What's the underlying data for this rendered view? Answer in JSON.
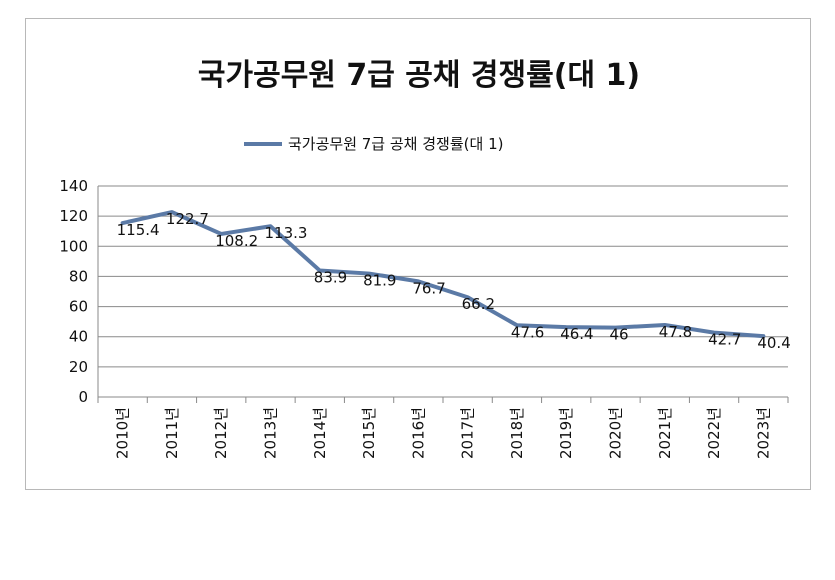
{
  "chart_data": {
    "type": "line",
    "title": "국가공무원 7급 공채 경쟁률(대 1)",
    "legend": {
      "position": "top",
      "label": "국가공무원 7급 공채 경쟁률(대 1)"
    },
    "categories": [
      "2010년",
      "2011년",
      "2012년",
      "2013년",
      "2014년",
      "2015년",
      "2016년",
      "2017년",
      "2018년",
      "2019년",
      "2020년",
      "2021년",
      "2022년",
      "2023년"
    ],
    "series": [
      {
        "name": "국가공무원 7급 공채 경쟁률(대 1)",
        "values": [
          115.4,
          122.7,
          108.2,
          113.3,
          83.9,
          81.9,
          76.7,
          66.2,
          47.6,
          46.4,
          46,
          47.8,
          42.7,
          40.4
        ],
        "labels": [
          "115.4",
          "122.7",
          "108.2",
          "113.3",
          "83.9",
          "81.9",
          "76.7",
          "66.2",
          "47.6",
          "46.4",
          "46",
          "47.8",
          "42.7",
          "40.4"
        ]
      }
    ],
    "y_ticks": [
      "0",
      "20",
      "40",
      "60",
      "80",
      "100",
      "120",
      "140"
    ],
    "y_tick_values": [
      0,
      20,
      40,
      60,
      80,
      100,
      120,
      140
    ],
    "ylim": [
      0,
      140
    ],
    "grid": true,
    "line_color": "#5b7aa6"
  }
}
